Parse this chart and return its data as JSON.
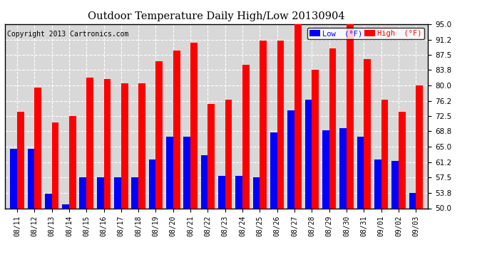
{
  "title": "Outdoor Temperature Daily High/Low 20130904",
  "copyright": "Copyright 2013 Cartronics.com",
  "legend_low": "Low  (°F)",
  "legend_high": "High  (°F)",
  "dates": [
    "08/11",
    "08/12",
    "08/13",
    "08/14",
    "08/15",
    "08/16",
    "08/17",
    "08/18",
    "08/19",
    "08/20",
    "08/21",
    "08/22",
    "08/23",
    "08/24",
    "08/25",
    "08/26",
    "08/27",
    "08/28",
    "08/29",
    "08/30",
    "08/31",
    "09/01",
    "09/02",
    "09/03"
  ],
  "lows": [
    64.5,
    64.5,
    53.5,
    51.0,
    57.5,
    57.5,
    57.5,
    57.5,
    62.0,
    67.5,
    67.5,
    63.0,
    58.0,
    58.0,
    57.5,
    68.5,
    74.0,
    76.5,
    69.0,
    69.5,
    67.5,
    62.0,
    61.5,
    53.8
  ],
  "highs": [
    73.5,
    79.5,
    71.0,
    72.5,
    82.0,
    81.5,
    80.5,
    80.5,
    86.0,
    88.5,
    90.5,
    75.5,
    76.5,
    85.0,
    91.0,
    91.0,
    95.5,
    83.8,
    89.0,
    95.5,
    86.5,
    76.5,
    73.5,
    80.0
  ],
  "low_color": "#0000ff",
  "high_color": "#ff0000",
  "bg_color": "#ffffff",
  "plot_bg_color": "#d8d8d8",
  "grid_color": "#ffffff",
  "ymin": 50.0,
  "ylim": [
    50.0,
    95.0
  ],
  "yticks": [
    50.0,
    53.8,
    57.5,
    61.2,
    65.0,
    68.8,
    72.5,
    76.2,
    80.0,
    83.8,
    87.5,
    91.2,
    95.0
  ]
}
